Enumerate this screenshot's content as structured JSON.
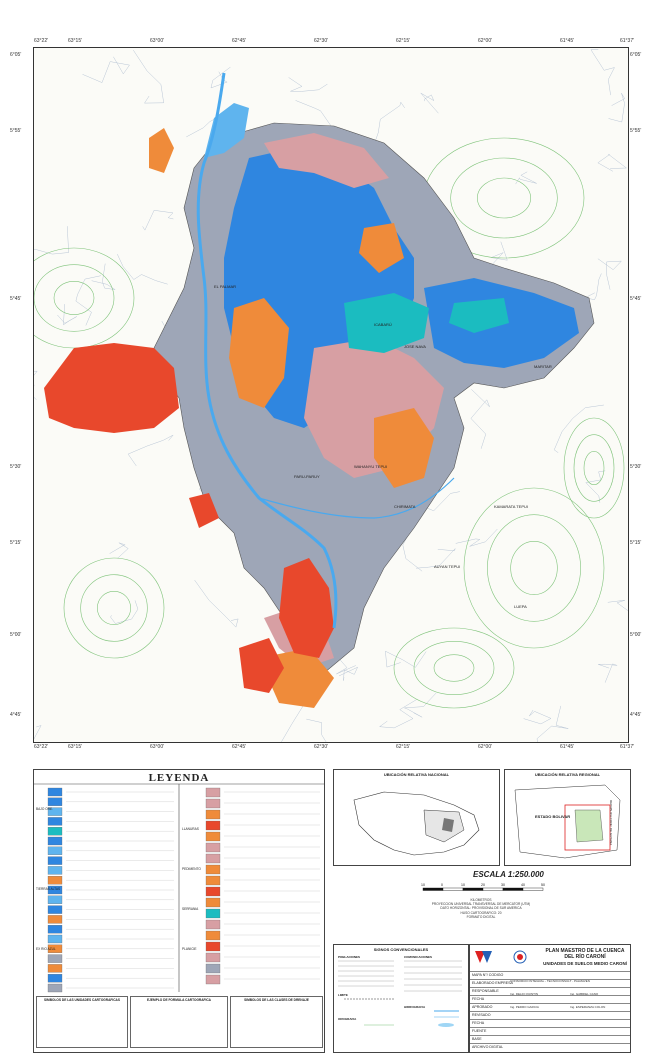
{
  "map": {
    "coords_top": [
      "63°22'",
      "63°15'",
      "63°00'",
      "62°45'",
      "62°30'",
      "62°15'",
      "62°00'",
      "61°45'",
      "61°37'"
    ],
    "coords_left": [
      "6°05'",
      "5°55'",
      "5°45'",
      "5°30'",
      "5°15'",
      "5°00'",
      "4°45'"
    ],
    "coords_right": [
      "6°05'",
      "5°55'",
      "5°45'",
      "5°30'",
      "5°15'",
      "5°00'",
      "4°45'"
    ],
    "places": [
      "EL PALMAR",
      "ICABARÚ",
      "JOSE NAVA",
      "MARITAR",
      "WAHANYU TEPUI",
      "CHIRIMATA",
      "PARU-PARUY",
      "KAMARATA TEPUI",
      "LUEPA",
      "AUYAN TEPUI"
    ],
    "colors": {
      "blue": "#2f86e0",
      "lightblue": "#5fb4ee",
      "gray": "#9ea6b7",
      "pink": "#d79fa3",
      "orange": "#ef8b3a",
      "red": "#e8482c",
      "cyan": "#1bbcc0",
      "river": "#4aa9ee"
    }
  },
  "legend": {
    "title": "LEYENDA",
    "left_groups": [
      "BAJO ORE.",
      "TIERRAS ALTAS",
      "EX RIO AZUL"
    ],
    "right_groups": [
      "LLANURAS",
      "PEDIMENTO",
      "SERRANIA",
      "PLANICIE"
    ],
    "swatches_left": [
      "#2f86e0",
      "#2f86e0",
      "#5fb4ee",
      "#2f86e0",
      "#1bbcc0",
      "#2f86e0",
      "#5fb4ee",
      "#2f86e0",
      "#5fb4ee",
      "#ef8b3a",
      "#2f86e0",
      "#5fb4ee",
      "#2f86e0",
      "#ef8b3a",
      "#2f86e0",
      "#5fb4ee",
      "#ef8b3a",
      "#9ea6b7",
      "#ef8b3a",
      "#2f86e0",
      "#9ea6b7"
    ],
    "swatches_right": [
      "#d79fa3",
      "#d79fa3",
      "#ef8b3a",
      "#e8482c",
      "#ef8b3a",
      "#d79fa3",
      "#d79fa3",
      "#ef8b3a",
      "#ef8b3a",
      "#e8482c",
      "#ef8b3a",
      "#1bbcc0",
      "#d79fa3",
      "#ef8b3a",
      "#e8482c",
      "#d79fa3",
      "#9ea6b7",
      "#d79fa3"
    ],
    "bottom_titles": [
      "SIMBOLOS DE LAS UNIDADES CARTOGRAFICAS",
      "EJEMPLO DE FORMULA CARTOGRAFICA",
      "SIMBOLOS DE LAS CLASES DE DRENAJE"
    ]
  },
  "insets": {
    "national_title": "UBICACIÓN RELATIVA NACIONAL",
    "regional_title": "UBICACIÓN RELATIVA REGIONAL",
    "regional_label": "ESTADO BOLIVAR",
    "regional_label2": "REPUBLICA COOP. DE GUYANA"
  },
  "scale": {
    "title": "ESCALA 1:250.000",
    "ticks": [
      "10",
      "0",
      "10",
      "20",
      "30",
      "40",
      "50"
    ],
    "unit": "KILOMETROS",
    "notes": [
      "PROYECCION UNIVERSAL TRANSVERSAL DE MERCATOR (UTM)",
      "DATO HORIZONTAL: PROVISIONAL DE SUR AMERICA",
      "HUSO CARTOGRAFICO: 20",
      "FORMATO DIGITAL"
    ]
  },
  "signs": {
    "title": "SIGNOS CONVENCIONALES",
    "columns": [
      "POBLACIONES",
      "COMUNICACIONES",
      "LIMITE",
      "HIDROGRAFIA",
      "OROGRAFIA"
    ]
  },
  "titleblock": {
    "project": "PLAN MAESTRO DE LA CUENCA DEL RÍO CARONÍ",
    "map_title": "UNIDADES DE SUELOS MEDIO CARONÍ",
    "rows": [
      "MAPA N°/ CODIGO",
      "ELABORADO EMPRESA",
      "RESPONSABLE",
      "FECHA",
      "APROBADO",
      "REVISADO",
      "FECHA",
      "FUENTE",
      "BASE",
      "ARCHIVO DIGITAL"
    ],
    "company": "CONSORCIO INTEGRAL - TECNOCONSULT - PALMAVEN",
    "person1": "Ing. DELIO QUINTIN",
    "person2": "Ing. GABRIEL CANO",
    "person3": "Ing. PEDRO GARCIA",
    "person4": "Ing. ESPERANZA COLON"
  }
}
